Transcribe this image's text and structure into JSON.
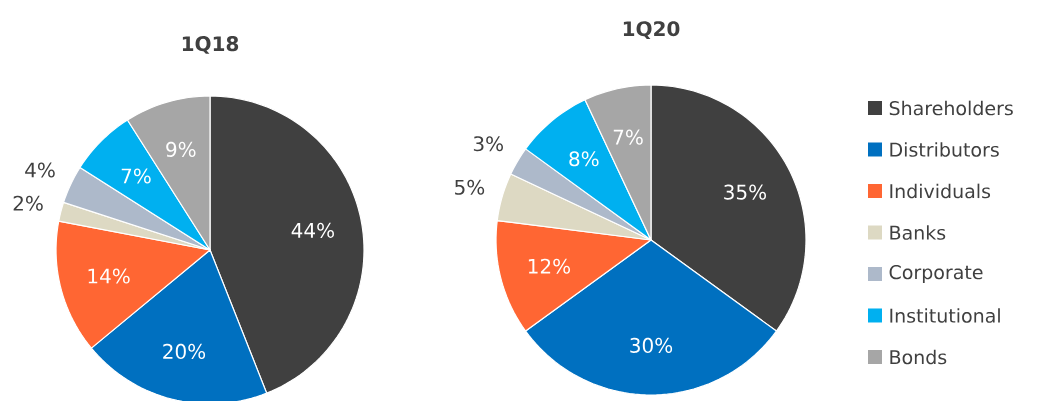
{
  "chart_data": [
    {
      "type": "pie",
      "title": "1Q18",
      "values": [
        44,
        20,
        14,
        2,
        4,
        7,
        9
      ],
      "value_labels": [
        "44%",
        "20%",
        "14%",
        "2%",
        "4%",
        "7%",
        "9%"
      ],
      "colors": [
        "#404040",
        "#0070c0",
        "#ff6633",
        "#ddd9c3",
        "#adb9ca",
        "#00b0f0",
        "#a6a6a6"
      ]
    },
    {
      "type": "pie",
      "title": "1Q20",
      "categories": [
        "Shareholders",
        "Distributors",
        "Individuals",
        "Banks",
        "Corporate",
        "Institutional",
        "Bonds"
      ],
      "values": [
        35,
        30,
        12,
        5,
        3,
        8,
        7
      ],
      "value_labels": [
        "35%",
        "30%",
        "12%",
        "5%",
        "3%",
        "8%",
        "7%"
      ],
      "colors": [
        "#404040",
        "#0070c0",
        "#ff6633",
        "#ddd9c3",
        "#adb9ca",
        "#00b0f0",
        "#a6a6a6"
      ],
      "legend": "right"
    }
  ]
}
